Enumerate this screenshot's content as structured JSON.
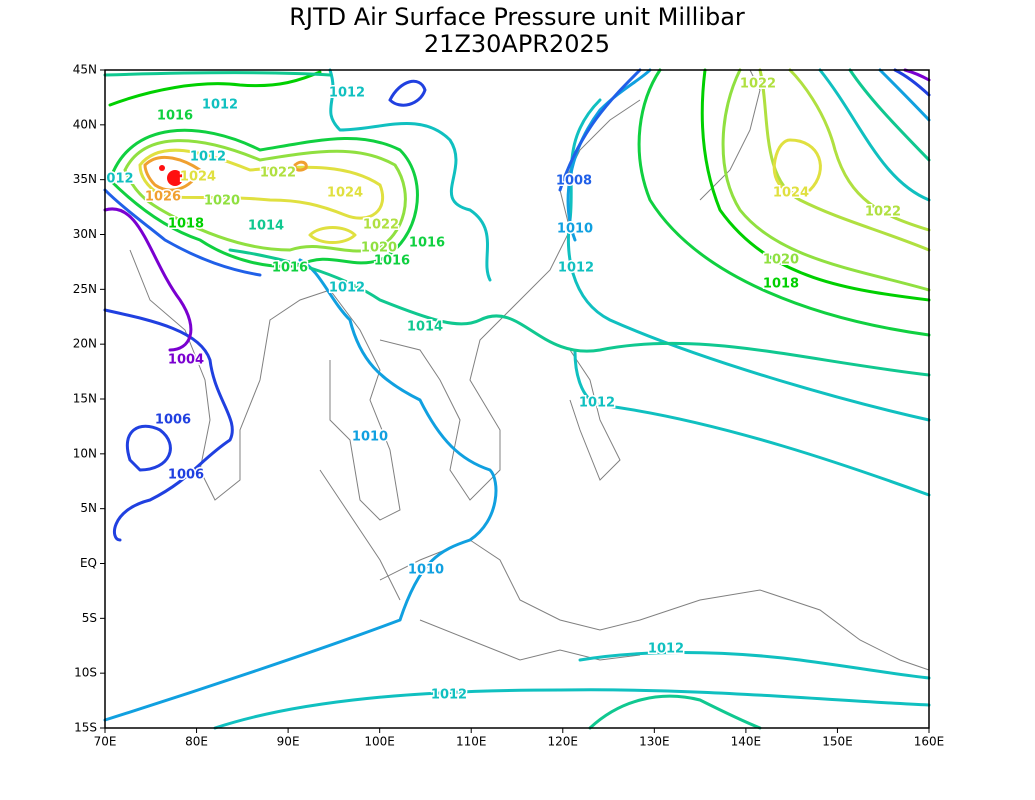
{
  "map": {
    "title": "RJTD Air Surface Pressure unit Millibar",
    "subtitle": "21Z30APR2025",
    "xlim": [
      70,
      160
    ],
    "ylim": [
      -15,
      45
    ],
    "xticks": [
      {
        "value": 70,
        "label": "70E"
      },
      {
        "value": 80,
        "label": "80E"
      },
      {
        "value": 90,
        "label": "90E"
      },
      {
        "value": 100,
        "label": "100E"
      },
      {
        "value": 110,
        "label": "110E"
      },
      {
        "value": 120,
        "label": "120E"
      },
      {
        "value": 130,
        "label": "130E"
      },
      {
        "value": 140,
        "label": "140E"
      },
      {
        "value": 150,
        "label": "150E"
      },
      {
        "value": 160,
        "label": "160E"
      }
    ],
    "yticks": [
      {
        "value": 45,
        "label": "45N"
      },
      {
        "value": 40,
        "label": "40N"
      },
      {
        "value": 35,
        "label": "35N"
      },
      {
        "value": 30,
        "label": "30N"
      },
      {
        "value": 25,
        "label": "25N"
      },
      {
        "value": 20,
        "label": "20N"
      },
      {
        "value": 15,
        "label": "15N"
      },
      {
        "value": 10,
        "label": "10N"
      },
      {
        "value": 5,
        "label": "5N"
      },
      {
        "value": 0,
        "label": "EQ"
      },
      {
        "value": -5,
        "label": "5S"
      },
      {
        "value": -10,
        "label": "10S"
      },
      {
        "value": -15,
        "label": "15S"
      }
    ],
    "contour_labels": [
      {
        "text": "1012",
        "color": "#10c0c0"
      },
      {
        "text": "1016",
        "color": "#10d040"
      },
      {
        "text": "1012",
        "color": "#10c0c0"
      },
      {
        "text": "1022",
        "color": "#b0e040"
      },
      {
        "text": "1012",
        "color": "#10c0c0"
      },
      {
        "text": "1024",
        "color": "#e0e040"
      },
      {
        "text": "1022",
        "color": "#b0e040"
      },
      {
        "text": "1008",
        "color": "#2060e8"
      },
      {
        "text": "012",
        "color": "#10c0c0"
      },
      {
        "text": "1024",
        "color": "#e0e040"
      },
      {
        "text": "1026",
        "color": "#f0a030"
      },
      {
        "text": "1020",
        "color": "#90e040"
      },
      {
        "text": "1024",
        "color": "#e0e040"
      },
      {
        "text": "1022",
        "color": "#b0e040"
      },
      {
        "text": "1018",
        "color": "#00d000"
      },
      {
        "text": "1014",
        "color": "#10c890"
      },
      {
        "text": "1022",
        "color": "#b0e040"
      },
      {
        "text": "1010",
        "color": "#10a0e0"
      },
      {
        "text": "1020",
        "color": "#90e040"
      },
      {
        "text": "1016",
        "color": "#10d040"
      },
      {
        "text": "1016",
        "color": "#10d040"
      },
      {
        "text": "1016",
        "color": "#10d040"
      },
      {
        "text": "1012",
        "color": "#10c0c0"
      },
      {
        "text": "1020",
        "color": "#90e040"
      },
      {
        "text": "1018",
        "color": "#00d000"
      },
      {
        "text": "1012",
        "color": "#10c0c0"
      },
      {
        "text": "1014",
        "color": "#10c890"
      },
      {
        "text": "1004",
        "color": "#7a00d0"
      },
      {
        "text": "1012",
        "color": "#10c0c0"
      },
      {
        "text": "1006",
        "color": "#2040e0"
      },
      {
        "text": "1010",
        "color": "#10a0e0"
      },
      {
        "text": "1006",
        "color": "#2040e0"
      },
      {
        "text": "1010",
        "color": "#10a0e0"
      },
      {
        "text": "1012",
        "color": "#10c0c0"
      },
      {
        "text": "1012",
        "color": "#10c0c0"
      }
    ]
  }
}
